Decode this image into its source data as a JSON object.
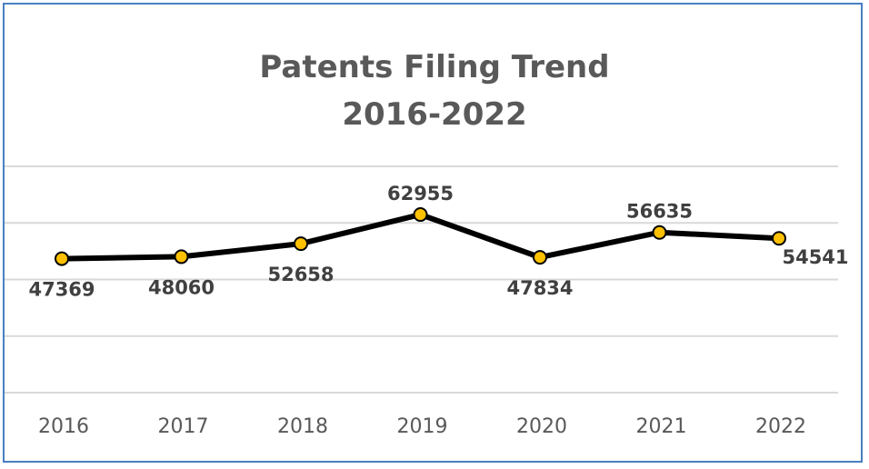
{
  "chart_data": {
    "type": "line",
    "title_line1": "Patents Filing Trend",
    "title_line2": "2016-2022",
    "categories": [
      "2016",
      "2017",
      "2018",
      "2019",
      "2020",
      "2021",
      "2022"
    ],
    "values": [
      47369,
      48060,
      52658,
      62955,
      47834,
      56635,
      54541
    ],
    "ylim": [
      0,
      80000
    ],
    "grid": true,
    "colors": {
      "line": "#000000",
      "marker": "#ffc000",
      "grid": "#d9d9d9",
      "border": "#4a7fc1"
    }
  }
}
